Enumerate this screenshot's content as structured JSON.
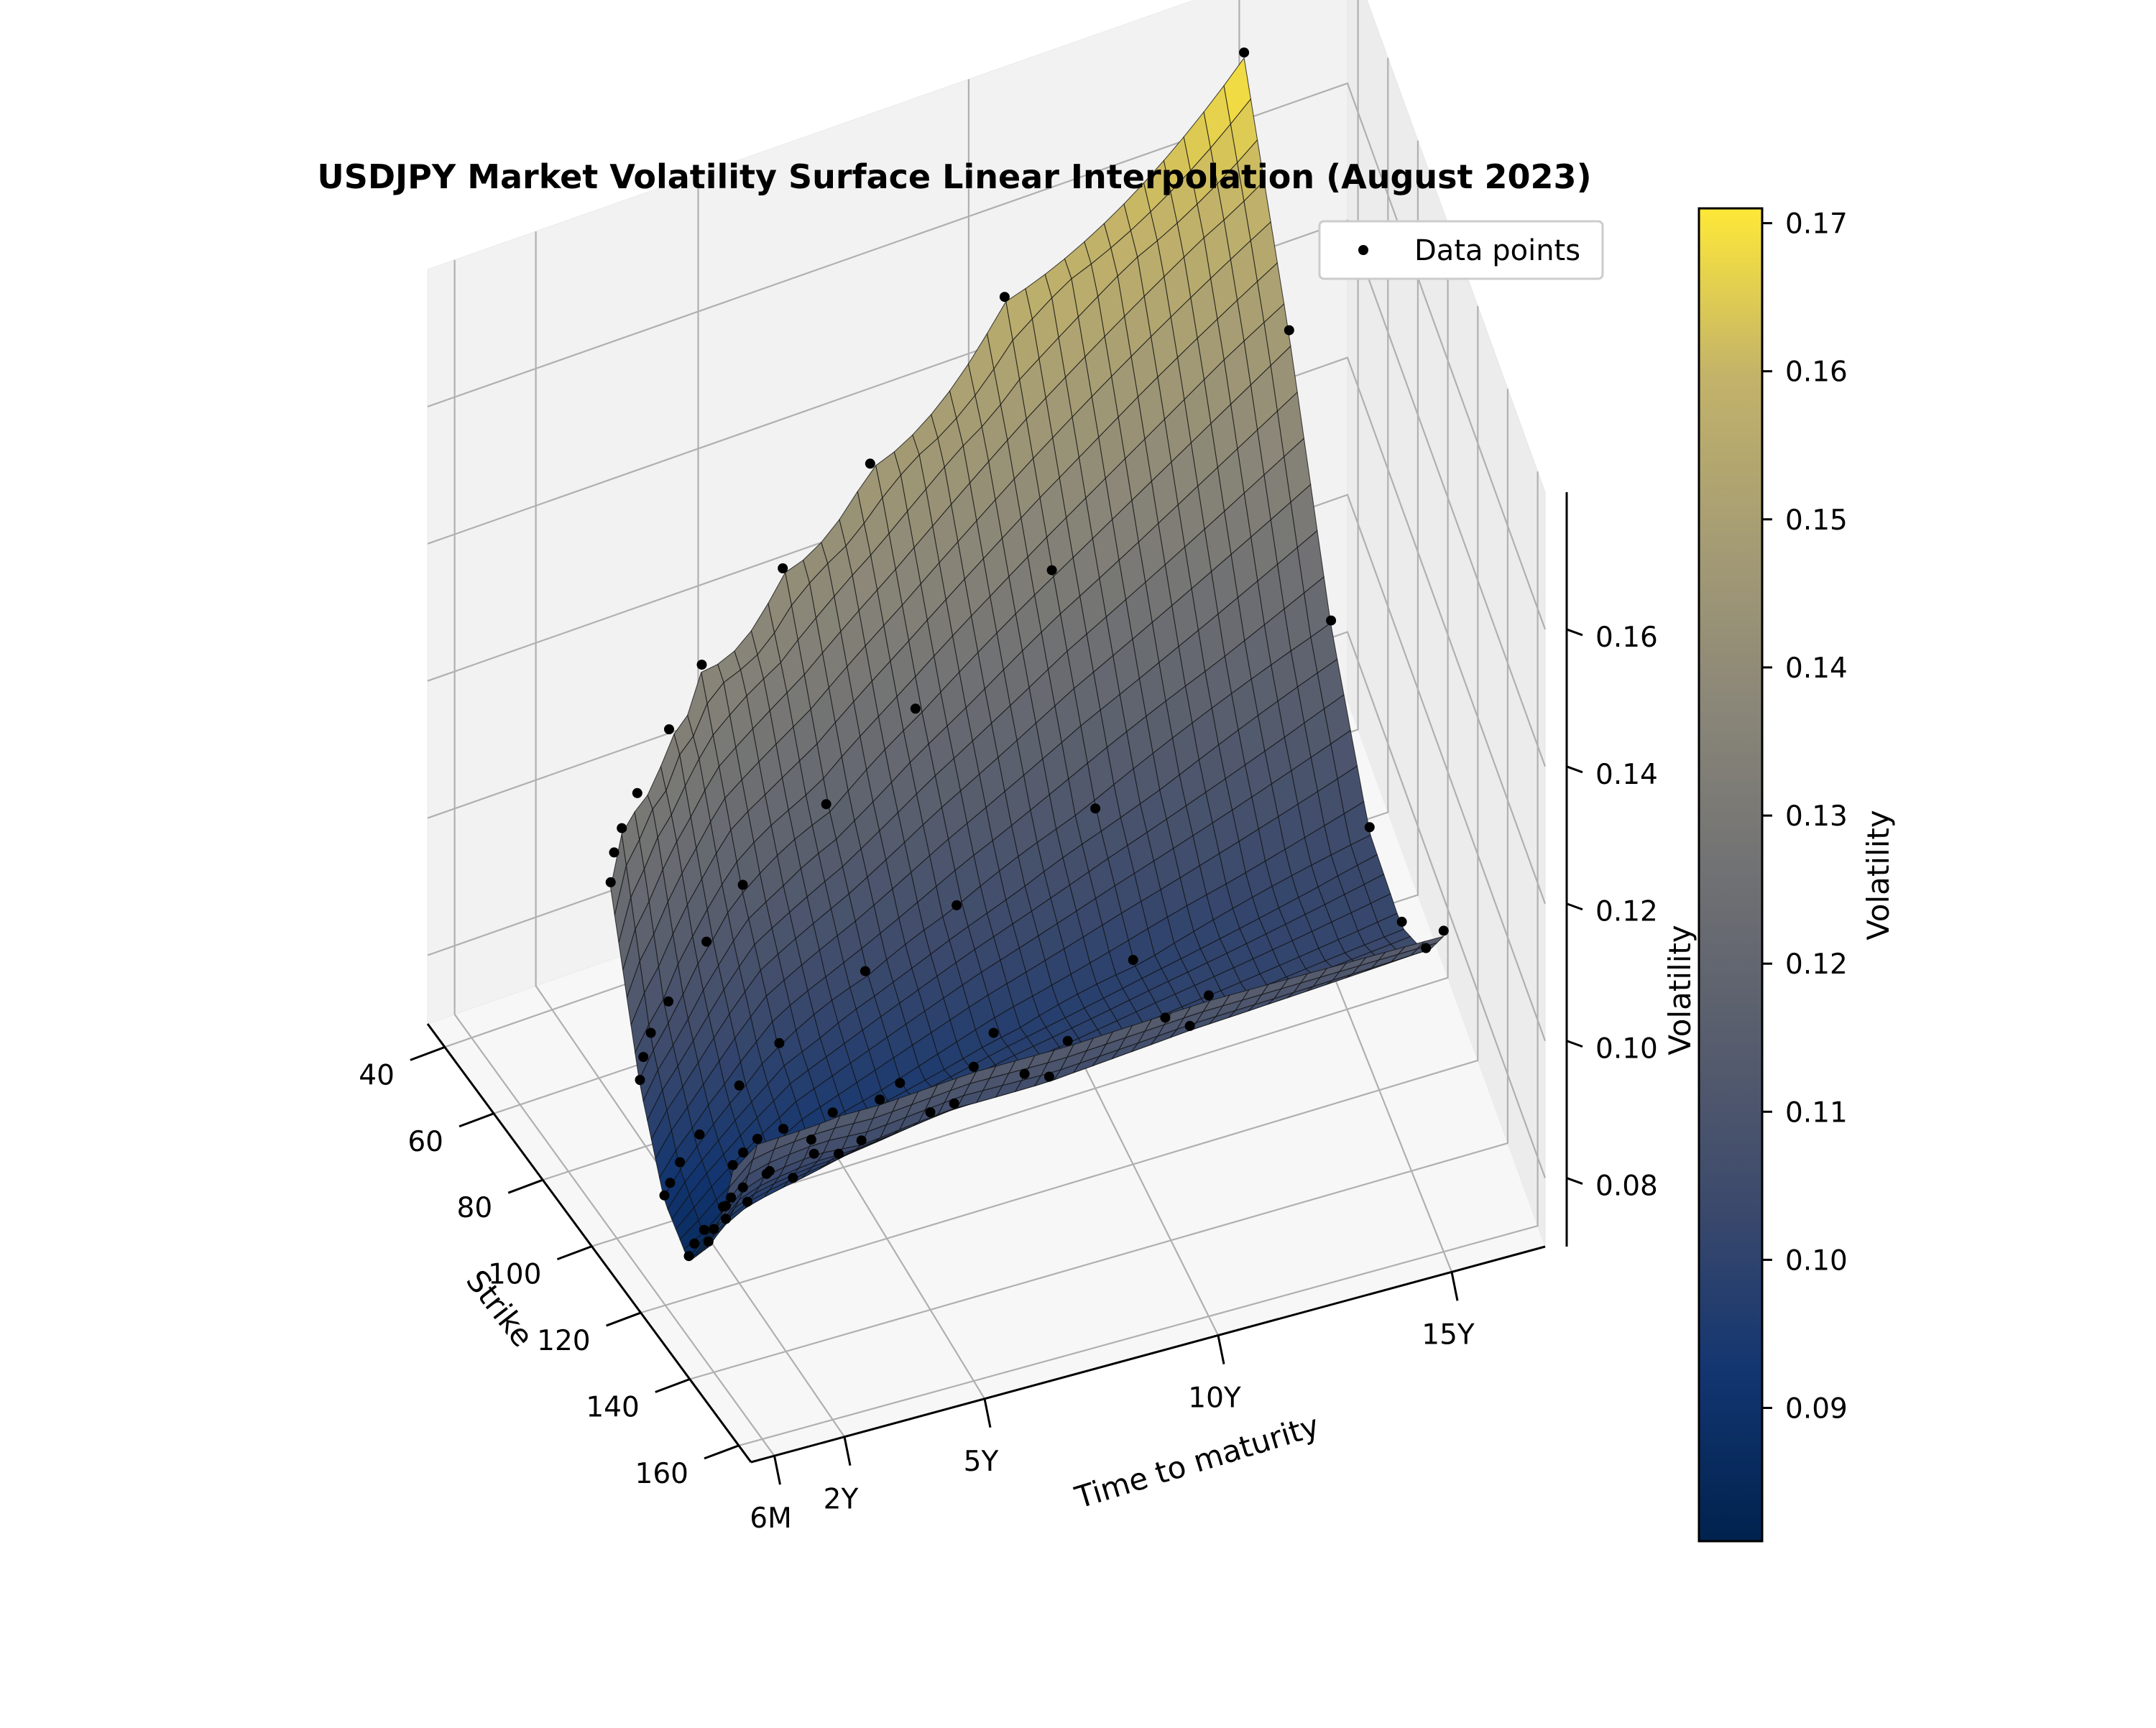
{
  "chart_data": {
    "type": "surface",
    "title": "USDJPY Market Volatility Surface Linear Interpolation (August 2023)",
    "xlabel": "Strike",
    "ylabel": "Time to maturity",
    "zlabel": "Volatility",
    "colorbar_label": "Volatility",
    "legend": {
      "label": "Data points",
      "placement": "top-right"
    },
    "colormap": "cividis",
    "grid": true,
    "strike_ticks": [
      "40",
      "60",
      "80",
      "100",
      "120",
      "140",
      "160"
    ],
    "strike_tick_values": [
      40,
      60,
      80,
      100,
      120,
      140,
      160
    ],
    "maturity_ticks": [
      "6M",
      "2Y",
      "5Y",
      "10Y",
      "15Y"
    ],
    "maturity_tick_values": [
      0.5,
      2,
      5,
      10,
      15
    ],
    "vol_ticks": [
      "0.08",
      "0.10",
      "0.12",
      "0.14",
      "0.16"
    ],
    "vol_tick_values": [
      0.08,
      0.1,
      0.12,
      0.14,
      0.16
    ],
    "colorbar_ticks": [
      "0.09",
      "0.10",
      "0.11",
      "0.12",
      "0.13",
      "0.14",
      "0.15",
      "0.16",
      "0.17"
    ],
    "colorbar_tick_values": [
      0.09,
      0.1,
      0.11,
      0.12,
      0.13,
      0.14,
      0.15,
      0.16,
      0.17
    ],
    "xlim": [
      33,
      165
    ],
    "ylim": [
      0,
      17
    ],
    "zlim": [
      0.07,
      0.18
    ],
    "clim": [
      0.081,
      0.171
    ],
    "maturities": [
      0.0833,
      0.25,
      0.5,
      1,
      2,
      3,
      5,
      7,
      10,
      15
    ],
    "strike_left": [
      106,
      104,
      102,
      98,
      90,
      82,
      72,
      64,
      52,
      36
    ],
    "strike_right": [
      156,
      157,
      158,
      159,
      160,
      160,
      160,
      160,
      160,
      160
    ],
    "points": [
      {
        "t": 0.0833,
        "k": [
          106,
          118,
          128,
          138,
          146,
          152,
          156
        ],
        "v": [
          0.125,
          0.102,
          0.09,
          0.086,
          0.092,
          0.1,
          0.108
        ]
      },
      {
        "t": 0.25,
        "k": [
          104,
          116,
          127,
          137,
          145,
          152,
          157
        ],
        "v": [
          0.128,
          0.104,
          0.091,
          0.087,
          0.093,
          0.101,
          0.11
        ]
      },
      {
        "t": 0.5,
        "k": [
          102,
          114,
          126,
          136,
          145,
          152,
          158
        ],
        "v": [
          0.13,
          0.106,
          0.093,
          0.088,
          0.094,
          0.102,
          0.112
        ]
      },
      {
        "t": 1,
        "k": [
          98,
          111,
          124,
          135,
          144,
          152,
          159
        ],
        "v": [
          0.132,
          0.108,
          0.095,
          0.09,
          0.095,
          0.103,
          0.113
        ]
      },
      {
        "t": 2,
        "k": [
          90,
          106,
          120,
          133,
          143,
          152,
          160
        ],
        "v": [
          0.135,
          0.112,
          0.098,
          0.092,
          0.096,
          0.104,
          0.114
        ]
      },
      {
        "t": 3,
        "k": [
          82,
          100,
          116,
          130,
          142,
          152,
          160
        ],
        "v": [
          0.138,
          0.115,
          0.1,
          0.093,
          0.097,
          0.104,
          0.114
        ]
      },
      {
        "t": 5,
        "k": [
          72,
          92,
          110,
          126,
          140,
          151,
          160
        ],
        "v": [
          0.142,
          0.118,
          0.103,
          0.095,
          0.098,
          0.105,
          0.115
        ]
      },
      {
        "t": 7,
        "k": [
          64,
          86,
          106,
          124,
          139,
          151,
          160
        ],
        "v": [
          0.148,
          0.124,
          0.106,
          0.097,
          0.099,
          0.105,
          0.115
        ]
      },
      {
        "t": 10,
        "k": [
          52,
          77,
          100,
          120,
          137,
          150,
          160
        ],
        "v": [
          0.158,
          0.132,
          0.11,
          0.099,
          0.1,
          0.106,
          0.116
        ]
      },
      {
        "t": 15,
        "k": [
          36,
          64,
          90,
          114,
          134,
          149,
          160
        ],
        "v": [
          0.171,
          0.147,
          0.12,
          0.104,
          0.102,
          0.107,
          0.116
        ]
      }
    ]
  }
}
